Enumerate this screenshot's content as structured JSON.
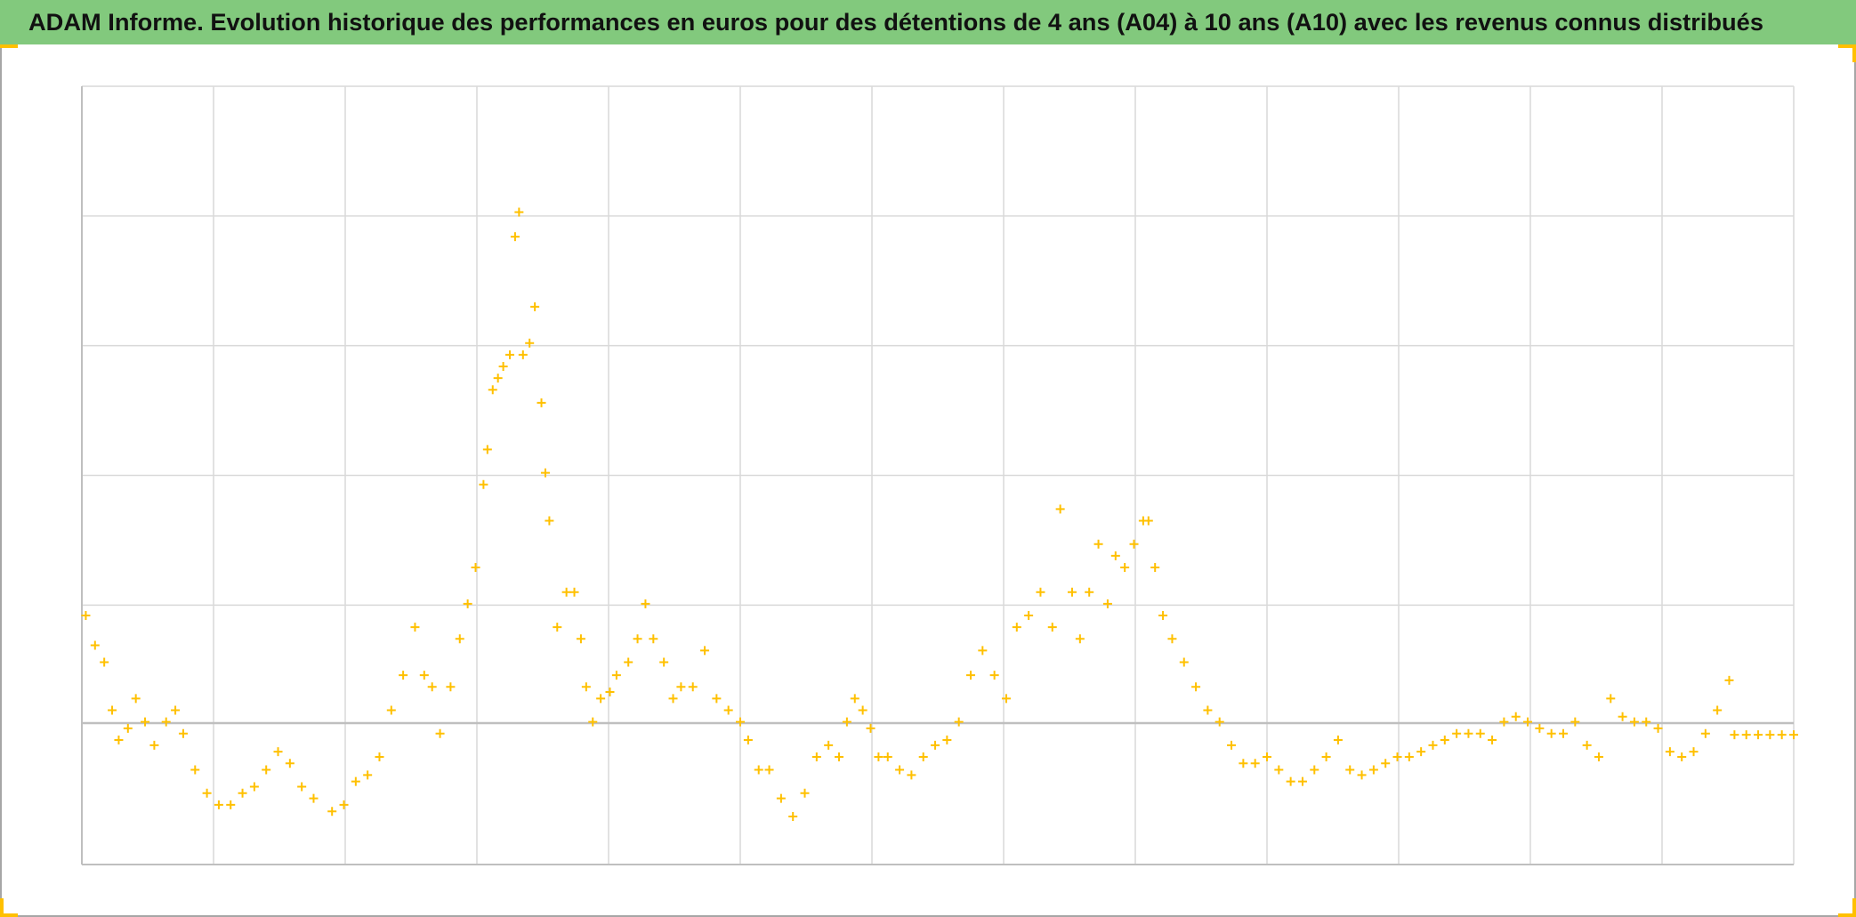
{
  "chart_data": {
    "type": "scatter",
    "title": "ADAM Informe. Evolution historique des performances en euros pour des détentions de 4 ans (A04) à 10 ans (A10) avec les revenus connus distribués",
    "series": [
      {
        "color": "#ffc000",
        "marker": "+",
        "x": [
          0.03,
          0.1,
          0.17,
          0.23,
          0.28,
          0.35,
          0.41,
          0.48,
          0.55,
          0.64,
          0.71,
          0.77,
          0.86,
          0.95,
          1.04,
          1.13,
          1.22,
          1.31,
          1.4,
          1.49,
          1.58,
          1.67,
          1.76,
          1.9,
          1.99,
          2.08,
          2.17,
          2.26,
          2.35,
          2.44,
          2.53,
          2.6,
          2.66,
          2.72,
          2.8,
          2.87,
          2.93,
          2.99,
          3.05,
          3.08,
          3.12,
          3.16,
          3.2,
          3.25,
          3.29,
          3.32,
          3.35,
          3.4,
          3.44,
          3.49,
          3.52,
          3.55,
          3.61,
          3.68,
          3.74,
          3.79,
          3.83,
          3.88,
          3.94,
          4.01,
          4.06,
          4.15,
          4.22,
          4.28,
          4.34,
          4.42,
          4.49,
          4.55,
          4.64,
          4.73,
          4.82,
          4.91,
          5.0,
          5.06,
          5.14,
          5.22,
          5.31,
          5.4,
          5.49,
          5.58,
          5.67,
          5.75,
          5.81,
          5.87,
          5.93,
          5.99,
          6.05,
          6.12,
          6.21,
          6.3,
          6.39,
          6.48,
          6.57,
          6.66,
          6.75,
          6.84,
          6.93,
          7.02,
          7.1,
          7.19,
          7.28,
          7.37,
          7.43,
          7.52,
          7.58,
          7.65,
          7.72,
          7.79,
          7.85,
          7.92,
          7.99,
          8.06,
          8.1,
          8.15,
          8.21,
          8.28,
          8.37,
          8.46,
          8.55,
          8.64,
          8.73,
          8.82,
          8.91,
          9.0,
          9.09,
          9.18,
          9.27,
          9.36,
          9.45,
          9.54,
          9.63,
          9.72,
          9.81,
          9.9,
          9.99,
          10.08,
          10.17,
          10.26,
          10.35,
          10.44,
          10.53,
          10.62,
          10.71,
          10.8,
          10.89,
          10.98,
          11.07,
          11.16,
          11.25,
          11.34,
          11.43,
          11.52,
          11.61,
          11.7,
          11.79,
          11.88,
          11.97,
          12.06,
          12.15,
          12.24,
          12.33,
          12.42,
          12.51,
          12.55,
          12.64,
          12.73,
          12.82,
          12.91,
          13.0
        ],
        "values": [
          0.83,
          0.6,
          0.47,
          0.1,
          -0.13,
          -0.04,
          0.19,
          0.01,
          -0.17,
          0.01,
          0.1,
          -0.08,
          -0.36,
          -0.54,
          -0.63,
          -0.63,
          -0.54,
          -0.49,
          -0.36,
          -0.22,
          -0.31,
          -0.49,
          -0.58,
          -0.68,
          -0.63,
          -0.45,
          -0.4,
          -0.26,
          0.1,
          0.37,
          0.74,
          0.37,
          0.28,
          -0.08,
          0.28,
          0.65,
          0.92,
          1.2,
          1.84,
          2.11,
          2.57,
          2.66,
          2.75,
          2.84,
          3.75,
          3.94,
          2.84,
          2.93,
          3.21,
          2.47,
          1.93,
          1.56,
          0.74,
          1.01,
          1.01,
          0.65,
          0.28,
          0.01,
          0.19,
          0.24,
          0.37,
          0.47,
          0.65,
          0.92,
          0.65,
          0.47,
          0.19,
          0.28,
          0.28,
          0.56,
          0.19,
          0.1,
          0.01,
          -0.13,
          -0.36,
          -0.36,
          -0.58,
          -0.72,
          -0.54,
          -0.26,
          -0.17,
          -0.26,
          0.01,
          0.19,
          0.1,
          -0.04,
          -0.26,
          -0.26,
          -0.36,
          -0.4,
          -0.26,
          -0.17,
          -0.13,
          0.01,
          0.37,
          0.56,
          0.37,
          0.19,
          0.74,
          0.83,
          1.01,
          0.74,
          1.65,
          1.01,
          0.65,
          1.01,
          1.38,
          0.92,
          1.29,
          1.2,
          1.38,
          1.56,
          1.56,
          1.2,
          0.83,
          0.65,
          0.47,
          0.28,
          0.1,
          0.01,
          -0.17,
          -0.31,
          -0.31,
          -0.26,
          -0.36,
          -0.45,
          -0.45,
          -0.36,
          -0.26,
          -0.13,
          -0.36,
          -0.4,
          -0.36,
          -0.31,
          -0.26,
          -0.26,
          -0.22,
          -0.17,
          -0.13,
          -0.08,
          -0.08,
          -0.08,
          -0.13,
          0.01,
          0.05,
          0.01,
          -0.04,
          -0.08,
          -0.08,
          0.01,
          -0.17,
          -0.26,
          0.19,
          0.05,
          0.01,
          0.01,
          -0.04,
          -0.22,
          -0.26,
          -0.22,
          -0.08,
          0.1,
          0.33,
          -0.09,
          -0.09,
          -0.09,
          -0.09,
          -0.09,
          -0.09
        ]
      }
    ],
    "xlim": [
      0,
      13
    ],
    "xticks": [
      0,
      1,
      2,
      3,
      4,
      5,
      6,
      7,
      8,
      9,
      10,
      11,
      12,
      13
    ],
    "ylim": [
      -1.09,
      4.91
    ],
    "yticks": [
      0.91,
      1.91,
      2.91,
      3.91,
      4.91
    ],
    "zero_line": 0,
    "grid": true
  }
}
